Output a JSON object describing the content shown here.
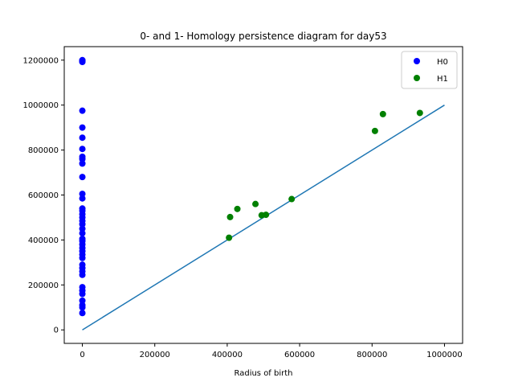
{
  "chart_data": {
    "type": "scatter",
    "title": "0- and 1- Homology persistence diagram for day53",
    "xlabel": "Radius of birth",
    "ylabel": "",
    "xlim": [
      -50000,
      1050000
    ],
    "ylim": [
      -60000,
      1260000
    ],
    "x_ticks": [
      0,
      200000,
      400000,
      600000,
      800000,
      1000000
    ],
    "x_tick_labels": [
      "0",
      "200000",
      "400000",
      "600000",
      "800000",
      "1000000"
    ],
    "y_ticks": [
      0,
      200000,
      400000,
      600000,
      800000,
      1000000,
      1200000
    ],
    "y_tick_labels": [
      "0",
      "200000",
      "400000",
      "600000",
      "800000",
      "1000000",
      "1200000"
    ],
    "grid": false,
    "legend_position": "top-right",
    "diagonal_line": {
      "x": [
        0,
        1000000
      ],
      "y": [
        0,
        1000000
      ],
      "color": "#1f77b4"
    },
    "series": [
      {
        "name": "H0",
        "color": "#0000ff",
        "points": [
          [
            0,
            1200000
          ],
          [
            0,
            1197000
          ],
          [
            0,
            1194000
          ],
          [
            0,
            1192000
          ],
          [
            0,
            975000
          ],
          [
            0,
            900000
          ],
          [
            0,
            855000
          ],
          [
            0,
            805000
          ],
          [
            0,
            770000
          ],
          [
            0,
            760000
          ],
          [
            0,
            740000
          ],
          [
            0,
            680000
          ],
          [
            0,
            605000
          ],
          [
            0,
            585000
          ],
          [
            0,
            540000
          ],
          [
            0,
            530000
          ],
          [
            0,
            515000
          ],
          [
            0,
            500000
          ],
          [
            0,
            485000
          ],
          [
            0,
            470000
          ],
          [
            0,
            450000
          ],
          [
            0,
            430000
          ],
          [
            0,
            405000
          ],
          [
            0,
            395000
          ],
          [
            0,
            380000
          ],
          [
            0,
            365000
          ],
          [
            0,
            350000
          ],
          [
            0,
            335000
          ],
          [
            0,
            320000
          ],
          [
            0,
            290000
          ],
          [
            0,
            275000
          ],
          [
            0,
            260000
          ],
          [
            0,
            245000
          ],
          [
            0,
            190000
          ],
          [
            0,
            175000
          ],
          [
            0,
            160000
          ],
          [
            0,
            130000
          ],
          [
            0,
            110000
          ],
          [
            0,
            100000
          ],
          [
            0,
            75000
          ]
        ]
      },
      {
        "name": "H1",
        "color": "#008000",
        "points": [
          [
            405000,
            410000
          ],
          [
            408000,
            502000
          ],
          [
            428000,
            538000
          ],
          [
            478000,
            560000
          ],
          [
            495000,
            510000
          ],
          [
            507000,
            512000
          ],
          [
            578000,
            582000
          ],
          [
            808000,
            885000
          ],
          [
            830000,
            960000
          ],
          [
            932000,
            965000
          ]
        ]
      }
    ]
  }
}
